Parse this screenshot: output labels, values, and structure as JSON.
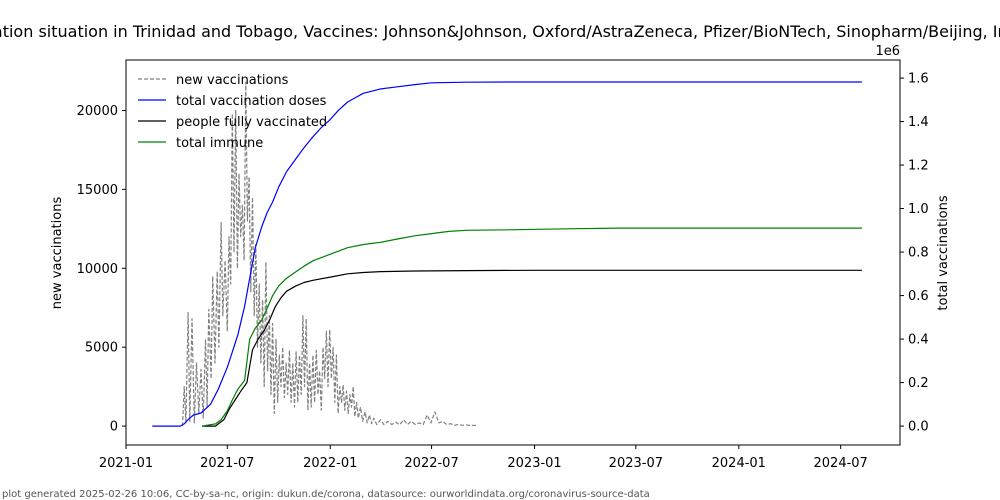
{
  "chart_data": {
    "type": "line",
    "title": "Vaccination situation in Trinidad and Tobago, Vaccines: Johnson&Johnson, Oxford/AstraZeneca, Pfizer/BioNTech, Sinopharm/Beijing, Immune",
    "ylabel_left": "new vaccinations",
    "ylabel_right": "total vaccinations",
    "right_axis_multiplier": "1e6",
    "footer": "plot generated 2025-02-26 10:06, CC-by-sa-nc, origin: dukun.de/corona, datasource: ourworldindata.org/coronavirus-source-data",
    "x_range": [
      "2021-01-01",
      "2024-10-15"
    ],
    "ylim_left": [
      -1200,
      23200
    ],
    "ylim_right": [
      -0.087,
      1.683
    ],
    "x_ticks": [
      "2021-01",
      "2021-07",
      "2022-01",
      "2022-07",
      "2023-01",
      "2023-07",
      "2024-01",
      "2024-07"
    ],
    "y_ticks_left": [
      "0",
      "5000",
      "10000",
      "15000",
      "20000"
    ],
    "y_ticks_right": [
      "0.0",
      "0.2",
      "0.4",
      "0.6",
      "0.8",
      "1.0",
      "1.2",
      "1.4",
      "1.6"
    ],
    "legend_position": "top-left",
    "series": [
      {
        "name": "new vaccinations",
        "axis": "left",
        "color": "#808080",
        "style": "dashed",
        "points": [
          [
            "2021-04-12",
            0
          ],
          [
            "2021-04-15",
            2500
          ],
          [
            "2021-04-18",
            200
          ],
          [
            "2021-04-22",
            7200
          ],
          [
            "2021-04-25",
            300
          ],
          [
            "2021-04-29",
            6800
          ],
          [
            "2021-05-03",
            200
          ],
          [
            "2021-05-07",
            4000
          ],
          [
            "2021-05-11",
            800
          ],
          [
            "2021-05-15",
            3600
          ],
          [
            "2021-05-19",
            500
          ],
          [
            "2021-05-23",
            5500
          ],
          [
            "2021-05-26",
            1200
          ],
          [
            "2021-05-29",
            7400
          ],
          [
            "2021-06-02",
            3000
          ],
          [
            "2021-06-05",
            9500
          ],
          [
            "2021-06-09",
            4000
          ],
          [
            "2021-06-13",
            9800
          ],
          [
            "2021-06-16",
            5000
          ],
          [
            "2021-06-20",
            12900
          ],
          [
            "2021-06-23",
            7000
          ],
          [
            "2021-06-27",
            10500
          ],
          [
            "2021-07-01",
            6000
          ],
          [
            "2021-07-04",
            12000
          ],
          [
            "2021-07-07",
            9000
          ],
          [
            "2021-07-10",
            19800
          ],
          [
            "2021-07-13",
            11000
          ],
          [
            "2021-07-16",
            20000
          ],
          [
            "2021-07-19",
            10000
          ],
          [
            "2021-07-22",
            16000
          ],
          [
            "2021-07-25",
            12000
          ],
          [
            "2021-07-28",
            14000
          ],
          [
            "2021-07-31",
            10500
          ],
          [
            "2021-08-03",
            21800
          ],
          [
            "2021-08-06",
            13000
          ],
          [
            "2021-08-09",
            15800
          ],
          [
            "2021-08-12",
            8500
          ],
          [
            "2021-08-15",
            14500
          ],
          [
            "2021-08-18",
            7000
          ],
          [
            "2021-08-21",
            11500
          ],
          [
            "2021-08-24",
            5000
          ],
          [
            "2021-08-27",
            9000
          ],
          [
            "2021-08-30",
            4000
          ],
          [
            "2021-09-02",
            8000
          ],
          [
            "2021-09-05",
            2500
          ],
          [
            "2021-09-08",
            10400
          ],
          [
            "2021-09-11",
            3500
          ],
          [
            "2021-09-14",
            7000
          ],
          [
            "2021-09-17",
            2000
          ],
          [
            "2021-09-20",
            6500
          ],
          [
            "2021-09-23",
            800
          ],
          [
            "2021-09-26",
            5500
          ],
          [
            "2021-09-29",
            1500
          ],
          [
            "2021-10-02",
            4500
          ],
          [
            "2021-10-05",
            2500
          ],
          [
            "2021-10-08",
            5000
          ],
          [
            "2021-10-11",
            1800
          ],
          [
            "2021-10-14",
            4000
          ],
          [
            "2021-10-17",
            2000
          ],
          [
            "2021-10-20",
            4800
          ],
          [
            "2021-10-23",
            1500
          ],
          [
            "2021-10-26",
            4000
          ],
          [
            "2021-10-29",
            1200
          ],
          [
            "2021-11-01",
            4700
          ],
          [
            "2021-11-04",
            1500
          ],
          [
            "2021-11-07",
            4500
          ],
          [
            "2021-11-10",
            2000
          ],
          [
            "2021-11-13",
            7000
          ],
          [
            "2021-11-16",
            2500
          ],
          [
            "2021-11-19",
            6800
          ],
          [
            "2021-11-22",
            1000
          ],
          [
            "2021-11-25",
            4000
          ],
          [
            "2021-11-28",
            1200
          ],
          [
            "2021-12-01",
            4500
          ],
          [
            "2021-12-04",
            1500
          ],
          [
            "2021-12-07",
            4800
          ],
          [
            "2021-12-10",
            2000
          ],
          [
            "2021-12-13",
            3500
          ],
          [
            "2021-12-16",
            1000
          ],
          [
            "2021-12-19",
            5000
          ],
          [
            "2021-12-22",
            3000
          ],
          [
            "2021-12-25",
            6000
          ],
          [
            "2021-12-28",
            2500
          ],
          [
            "2021-12-31",
            6100
          ],
          [
            "2022-01-03",
            3000
          ],
          [
            "2022-01-06",
            5000
          ],
          [
            "2022-01-09",
            1500
          ],
          [
            "2022-01-12",
            4500
          ],
          [
            "2022-01-15",
            800
          ],
          [
            "2022-01-18",
            2500
          ],
          [
            "2022-01-21",
            1500
          ],
          [
            "2022-01-24",
            2600
          ],
          [
            "2022-01-27",
            1000
          ],
          [
            "2022-01-30",
            2200
          ],
          [
            "2022-02-02",
            800
          ],
          [
            "2022-02-05",
            2000
          ],
          [
            "2022-02-08",
            1200
          ],
          [
            "2022-02-11",
            2500
          ],
          [
            "2022-02-14",
            600
          ],
          [
            "2022-02-17",
            1500
          ],
          [
            "2022-02-20",
            500
          ],
          [
            "2022-02-24",
            1200
          ],
          [
            "2022-02-28",
            300
          ],
          [
            "2022-03-04",
            900
          ],
          [
            "2022-03-08",
            200
          ],
          [
            "2022-03-12",
            700
          ],
          [
            "2022-03-16",
            150
          ],
          [
            "2022-03-20",
            500
          ],
          [
            "2022-03-25",
            100
          ],
          [
            "2022-04-01",
            400
          ],
          [
            "2022-04-07",
            80
          ],
          [
            "2022-04-14",
            300
          ],
          [
            "2022-04-21",
            100
          ],
          [
            "2022-04-28",
            250
          ],
          [
            "2022-05-05",
            80
          ],
          [
            "2022-05-12",
            400
          ],
          [
            "2022-05-19",
            100
          ],
          [
            "2022-05-26",
            300
          ],
          [
            "2022-06-02",
            100
          ],
          [
            "2022-06-09",
            200
          ],
          [
            "2022-06-16",
            100
          ],
          [
            "2022-06-23",
            700
          ],
          [
            "2022-06-30",
            200
          ],
          [
            "2022-07-07",
            900
          ],
          [
            "2022-07-14",
            200
          ],
          [
            "2022-07-21",
            300
          ],
          [
            "2022-07-28",
            100
          ],
          [
            "2022-08-04",
            150
          ],
          [
            "2022-08-11",
            50
          ],
          [
            "2022-08-18",
            100
          ],
          [
            "2022-08-25",
            50
          ],
          [
            "2022-09-01",
            80
          ],
          [
            "2022-09-08",
            30
          ],
          [
            "2022-09-15",
            50
          ],
          [
            "2022-09-22",
            20
          ]
        ]
      },
      {
        "name": "total vaccination doses",
        "axis": "right",
        "color": "#0000ff",
        "style": "solid",
        "points": [
          [
            "2021-02-17",
            0.0
          ],
          [
            "2021-03-15",
            0.0
          ],
          [
            "2021-04-08",
            0.0
          ],
          [
            "2021-04-15",
            0.01
          ],
          [
            "2021-04-22",
            0.03
          ],
          [
            "2021-05-01",
            0.05
          ],
          [
            "2021-05-15",
            0.06
          ],
          [
            "2021-06-01",
            0.1
          ],
          [
            "2021-06-15",
            0.17
          ],
          [
            "2021-07-01",
            0.27
          ],
          [
            "2021-07-10",
            0.34
          ],
          [
            "2021-07-20",
            0.42
          ],
          [
            "2021-08-01",
            0.55
          ],
          [
            "2021-08-10",
            0.68
          ],
          [
            "2021-08-20",
            0.82
          ],
          [
            "2021-09-01",
            0.92
          ],
          [
            "2021-09-10",
            0.98
          ],
          [
            "2021-09-20",
            1.03
          ],
          [
            "2021-10-01",
            1.1
          ],
          [
            "2021-10-15",
            1.17
          ],
          [
            "2021-11-01",
            1.23
          ],
          [
            "2021-11-15",
            1.28
          ],
          [
            "2021-12-01",
            1.33
          ],
          [
            "2021-12-15",
            1.37
          ],
          [
            "2022-01-01",
            1.41
          ],
          [
            "2022-01-15",
            1.45
          ],
          [
            "2022-02-01",
            1.49
          ],
          [
            "2022-02-15",
            1.51
          ],
          [
            "2022-03-01",
            1.53
          ],
          [
            "2022-04-01",
            1.55
          ],
          [
            "2022-05-01",
            1.56
          ],
          [
            "2022-06-01",
            1.57
          ],
          [
            "2022-07-01",
            1.578
          ],
          [
            "2022-09-01",
            1.581
          ],
          [
            "2022-12-01",
            1.582
          ],
          [
            "2023-06-01",
            1.582
          ],
          [
            "2024-08-08",
            1.582
          ]
        ]
      },
      {
        "name": "people fully vaccinated",
        "axis": "right",
        "color": "#000000",
        "style": "solid",
        "points": [
          [
            "2021-05-17",
            0.0
          ],
          [
            "2021-06-10",
            0.0
          ],
          [
            "2021-06-15",
            0.01
          ],
          [
            "2021-06-25",
            0.03
          ],
          [
            "2021-07-05",
            0.08
          ],
          [
            "2021-07-15",
            0.12
          ],
          [
            "2021-07-25",
            0.16
          ],
          [
            "2021-08-05",
            0.2
          ],
          [
            "2021-08-15",
            0.35
          ],
          [
            "2021-08-25",
            0.4
          ],
          [
            "2021-09-05",
            0.44
          ],
          [
            "2021-09-15",
            0.49
          ],
          [
            "2021-09-25",
            0.55
          ],
          [
            "2021-10-05",
            0.59
          ],
          [
            "2021-10-15",
            0.62
          ],
          [
            "2021-11-01",
            0.645
          ],
          [
            "2021-11-15",
            0.66
          ],
          [
            "2021-12-01",
            0.67
          ],
          [
            "2022-01-01",
            0.685
          ],
          [
            "2022-02-01",
            0.7
          ],
          [
            "2022-03-01",
            0.706
          ],
          [
            "2022-04-01",
            0.71
          ],
          [
            "2022-06-01",
            0.713
          ],
          [
            "2022-09-01",
            0.715
          ],
          [
            "2023-01-01",
            0.716
          ],
          [
            "2023-06-01",
            0.716
          ],
          [
            "2024-08-08",
            0.716
          ]
        ]
      },
      {
        "name": "total immune",
        "axis": "right",
        "color": "#008000",
        "style": "solid",
        "points": [
          [
            "2021-05-17",
            0.0
          ],
          [
            "2021-06-10",
            0.01
          ],
          [
            "2021-06-20",
            0.03
          ],
          [
            "2021-07-01",
            0.07
          ],
          [
            "2021-07-10",
            0.12
          ],
          [
            "2021-07-20",
            0.17
          ],
          [
            "2021-08-01",
            0.21
          ],
          [
            "2021-08-10",
            0.4
          ],
          [
            "2021-08-20",
            0.45
          ],
          [
            "2021-09-01",
            0.49
          ],
          [
            "2021-09-10",
            0.54
          ],
          [
            "2021-09-20",
            0.6
          ],
          [
            "2021-10-01",
            0.645
          ],
          [
            "2021-10-15",
            0.68
          ],
          [
            "2021-11-01",
            0.71
          ],
          [
            "2021-11-15",
            0.735
          ],
          [
            "2021-12-01",
            0.76
          ],
          [
            "2022-01-01",
            0.79
          ],
          [
            "2022-02-01",
            0.82
          ],
          [
            "2022-03-01",
            0.835
          ],
          [
            "2022-04-01",
            0.845
          ],
          [
            "2022-05-01",
            0.86
          ],
          [
            "2022-06-01",
            0.875
          ],
          [
            "2022-07-01",
            0.885
          ],
          [
            "2022-08-01",
            0.895
          ],
          [
            "2022-09-01",
            0.9
          ],
          [
            "2022-12-01",
            0.903
          ],
          [
            "2023-03-01",
            0.907
          ],
          [
            "2023-06-01",
            0.91
          ],
          [
            "2024-08-08",
            0.91
          ]
        ]
      }
    ]
  }
}
